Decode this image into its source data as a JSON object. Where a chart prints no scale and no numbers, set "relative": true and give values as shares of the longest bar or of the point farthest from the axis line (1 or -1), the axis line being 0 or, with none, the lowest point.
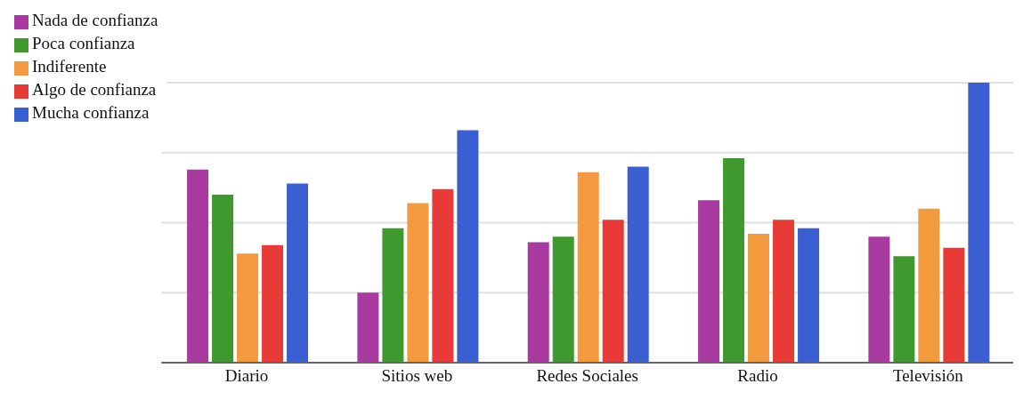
{
  "chart_data": {
    "type": "bar",
    "relative": true,
    "grid": "y",
    "legend": "top left",
    "categories": [
      "Diario",
      "Sitios web",
      "Redes Sociales",
      "Radio",
      "Televisión"
    ],
    "series": [
      {
        "name": "Nada de confianza",
        "color": "#a93aa0",
        "values": [
          0.69,
          0.25,
          0.43,
          0.58,
          0.45
        ]
      },
      {
        "name": "Poca confianza",
        "color": "#40992e",
        "values": [
          0.6,
          0.48,
          0.45,
          0.73,
          0.38
        ]
      },
      {
        "name": "Indiferente",
        "color": "#f29a3d",
        "values": [
          0.39,
          0.57,
          0.68,
          0.46,
          0.55
        ]
      },
      {
        "name": "Algo de confianza",
        "color": "#e83a37",
        "values": [
          0.42,
          0.62,
          0.51,
          0.51,
          0.41
        ]
      },
      {
        "name": "Mucha confianza",
        "color": "#3a5fd3",
        "values": [
          0.64,
          0.83,
          0.7,
          0.48,
          1
        ]
      }
    ]
  }
}
